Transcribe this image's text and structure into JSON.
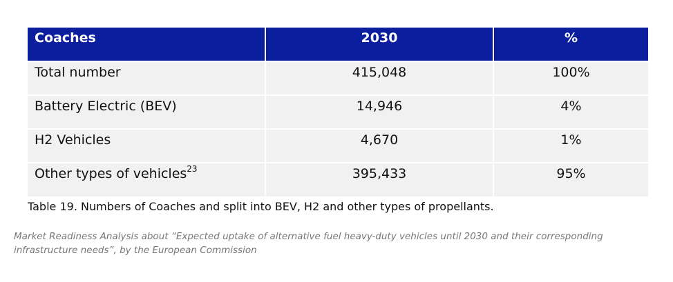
{
  "table": {
    "headers": [
      "Coaches",
      "2030",
      "%"
    ],
    "rows": [
      {
        "label": "Total number",
        "sup": "",
        "value": "415,048",
        "percent": "100%"
      },
      {
        "label": "Battery Electric (BEV)",
        "sup": "",
        "value": "14,946",
        "percent": "4%"
      },
      {
        "label": "H2 Vehicles",
        "sup": "",
        "value": "4,670",
        "percent": "1%"
      },
      {
        "label": "Other types of vehicles",
        "sup": "23",
        "value": "395,433",
        "percent": "95%"
      }
    ],
    "colors": {
      "header_bg": "#0b1f9e",
      "header_text": "#ffffff",
      "row_bg": "#f1f1f1"
    }
  },
  "caption": "Table 19. Numbers of Coaches and split into BEV, H2 and other types of propellants.",
  "source": "Market Readiness Analysis about “Expected uptake of alternative fuel heavy-duty vehicles until 2030 and their corresponding infrastructure needs”, by the European Commission"
}
